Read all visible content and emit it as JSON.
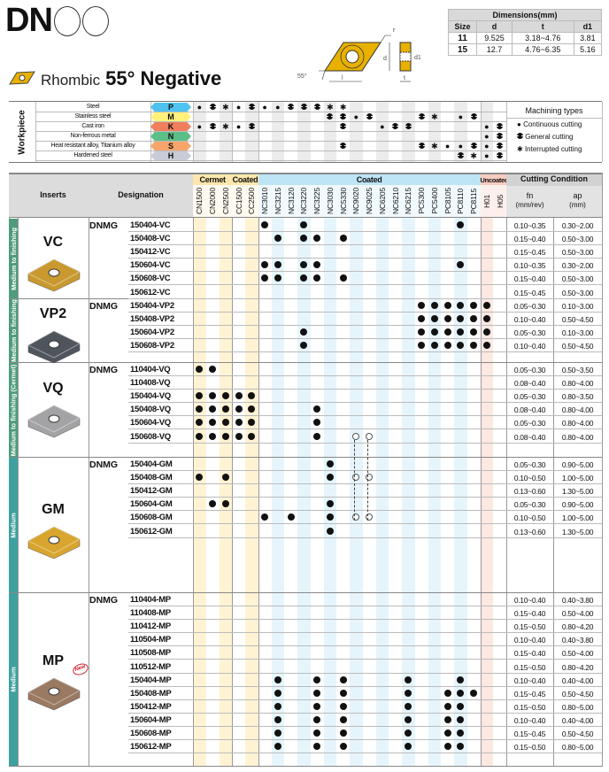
{
  "header": {
    "title": "DN",
    "subtitle_shape": "Rhombic",
    "subtitle_angle": "55° Negative"
  },
  "diagram": {
    "labels": {
      "r": "r",
      "d": "d",
      "d1": "d1",
      "l": "l",
      "t": "t",
      "angle": "55°"
    },
    "insert_color": "#e8b100"
  },
  "dimensions": {
    "title": "Dimensions(mm)",
    "columns": [
      "Size",
      "d",
      "t",
      "d1"
    ],
    "rows": [
      [
        "11",
        "9.525",
        "3.18~4.76",
        "3.81"
      ],
      [
        "15",
        "12.7",
        "4.76~6.35",
        "5.16"
      ]
    ]
  },
  "workpiece": {
    "label": "Workpiece",
    "rows": [
      {
        "name": "Steel",
        "code": "P",
        "color": "#4fc3f0",
        "symbols": "CGICGCCGGGII............"
      },
      {
        "name": "Stainless steel",
        "code": "M",
        "color": "#fff27a",
        "symbols": "..........GGCG...GI.CG.."
      },
      {
        "name": "Cast iron",
        "code": "K",
        "color": "#f07f5e",
        "symbols": "CGICG......G..CGG.....CG"
      },
      {
        "name": "Non-ferrous metal",
        "code": "N",
        "color": "#5cbf88",
        "symbols": "......................CG"
      },
      {
        "name": "Heat resistant alloy, Titanium alloy",
        "code": "S",
        "color": "#f7a56a",
        "symbols": "...........G.....GICCGCG"
      },
      {
        "name": "Hardened steel",
        "code": "H",
        "color": "#c9ccd8",
        "symbols": "....................GICG"
      }
    ]
  },
  "machining_types": {
    "title": "Machining types",
    "items": [
      "Continuous cutting",
      "General cutting",
      "Interrupted cutting"
    ]
  },
  "table": {
    "inserts_label": "Inserts",
    "designation_label": "Designation",
    "groups": [
      {
        "label": "Cermet",
        "color": "#fde7ad"
      },
      {
        "label": "Coated",
        "color": "#fde7ad"
      },
      {
        "label": "Coated",
        "color": "#bde5f6"
      },
      {
        "label": "Uncoated",
        "color": "#f8cbbf"
      }
    ],
    "grades": [
      "CN1500",
      "CN2000",
      "CN2500",
      "CC1500",
      "CC2500",
      "NC3010",
      "NC3215",
      "NC3120",
      "NC3220",
      "NC3225",
      "NC3030",
      "NC5330",
      "NC9020",
      "NC9025",
      "NC6205",
      "NC6210",
      "NC6215",
      "PC5300",
      "PC5400",
      "PC8105",
      "PC8110",
      "PC8115",
      "H01",
      "H05"
    ],
    "cutting_condition": "Cutting Condition",
    "fn_label": "fn",
    "fn_unit": "(mm/rev)",
    "ap_label": "ap",
    "ap_unit": "(mm)"
  },
  "sections": [
    {
      "name": "VC",
      "application": "Medium to finishing",
      "prefix": "DNMG",
      "rows": [
        {
          "code": "150404-VC",
          "dots": [
            5,
            8,
            20
          ],
          "fn": "0.10~0.35",
          "ap": "0.30~2.00"
        },
        {
          "code": "150408-VC",
          "dots": [
            6,
            8,
            9,
            11
          ],
          "fn": "0.15~0.40",
          "ap": "0.50~3.00"
        },
        {
          "code": "150412-VC",
          "dots": [],
          "fn": "0.15~0.45",
          "ap": "0.50~3.00"
        },
        {
          "code": "150604-VC",
          "dots": [
            5,
            6,
            8,
            9,
            20
          ],
          "fn": "0.10~0.35",
          "ap": "0.30~2.00"
        },
        {
          "code": "150608-VC",
          "dots": [
            5,
            6,
            8,
            9,
            11
          ],
          "fn": "0.15~0.40",
          "ap": "0.50~3.00"
        },
        {
          "code": "150612-VC",
          "dots": [],
          "fn": "0.15~0.45",
          "ap": "0.50~3.00"
        }
      ]
    },
    {
      "name": "VP2",
      "application": "Medium to finishing",
      "prefix": "DNMG",
      "rows": [
        {
          "code": "150404-VP2",
          "dots": [
            17,
            18,
            19,
            20,
            21,
            22
          ],
          "fn": "0.05~0.30",
          "ap": "0.10~3.00"
        },
        {
          "code": "150408-VP2",
          "dots": [
            17,
            18,
            19,
            20,
            21,
            22
          ],
          "fn": "0.10~0.40",
          "ap": "0.50~4.50"
        },
        {
          "code": "150604-VP2",
          "dots": [
            8,
            17,
            18,
            19,
            20,
            21,
            22
          ],
          "fn": "0.05~0.30",
          "ap": "0.10~3.00"
        },
        {
          "code": "150608-VP2",
          "dots": [
            8,
            17,
            18,
            19,
            20,
            21,
            22
          ],
          "fn": "0.10~0.40",
          "ap": "0.50~4.50"
        }
      ]
    },
    {
      "name": "VQ",
      "application": "Medium to finishing (Cermet)",
      "prefix": "DNMG",
      "rows": [
        {
          "code": "110404-VQ",
          "dots": [
            0,
            1
          ],
          "fn": "0.05~0.30",
          "ap": "0.50~3.50"
        },
        {
          "code": "110408-VQ",
          "dots": [],
          "fn": "0.08~0.40",
          "ap": "0.80~4.00"
        },
        {
          "code": "150404-VQ",
          "dots": [
            0,
            1,
            2,
            3,
            4
          ],
          "fn": "0.05~0.30",
          "ap": "0.80~3.50"
        },
        {
          "code": "150408-VQ",
          "dots": [
            0,
            1,
            2,
            3,
            4,
            9
          ],
          "fn": "0.08~0.40",
          "ap": "0.80~4.00"
        },
        {
          "code": "150604-VQ",
          "dots": [
            0,
            1,
            2,
            3,
            4,
            9
          ],
          "fn": "0.05~0.30",
          "ap": "0.80~4.00"
        },
        {
          "code": "150608-VQ",
          "dots": [
            0,
            1,
            2,
            3,
            4,
            9
          ],
          "hollow": [
            12,
            13
          ],
          "fn": "0.08~0.40",
          "ap": "0.80~4.00"
        }
      ]
    },
    {
      "name": "GM",
      "application": "Medium",
      "prefix": "DNMG",
      "rows": [
        {
          "code": "150404-GM",
          "dots": [
            10
          ],
          "fn": "0.05~0.30",
          "ap": "0.90~5.00"
        },
        {
          "code": "150408-GM",
          "dots": [
            0,
            2,
            10
          ],
          "hollow": [
            12,
            13
          ],
          "fn": "0.10~0.50",
          "ap": "1.00~5.00"
        },
        {
          "code": "150412-GM",
          "dots": [],
          "fn": "0.13~0.60",
          "ap": "1.30~5.00"
        },
        {
          "code": "150604-GM",
          "dots": [
            1,
            2,
            10
          ],
          "fn": "0.05~0.30",
          "ap": "0.90~5.00"
        },
        {
          "code": "150608-GM",
          "dots": [
            5,
            7,
            10
          ],
          "hollow": [
            12,
            13
          ],
          "fn": "0.10~0.50",
          "ap": "1.00~5.00"
        },
        {
          "code": "150612-GM",
          "dots": [
            10
          ],
          "fn": "0.13~0.60",
          "ap": "1.30~5.00"
        }
      ]
    },
    {
      "name": "MP",
      "application": "Medium",
      "prefix": "DNMG",
      "badge": "New",
      "rows": [
        {
          "code": "110404-MP",
          "dots": [],
          "fn": "0.10~0.40",
          "ap": "0.40~3.80"
        },
        {
          "code": "110408-MP",
          "dots": [],
          "fn": "0.15~0.40",
          "ap": "0.50~4.00"
        },
        {
          "code": "110412-MP",
          "dots": [],
          "fn": "0.15~0.50",
          "ap": "0.80~4.20"
        },
        {
          "code": "110504-MP",
          "dots": [],
          "fn": "0.10~0.40",
          "ap": "0.40~3.80"
        },
        {
          "code": "110508-MP",
          "dots": [],
          "fn": "0.15~0.40",
          "ap": "0.50~4.00"
        },
        {
          "code": "110512-MP",
          "dots": [],
          "fn": "0.15~0.50",
          "ap": "0.80~4.20"
        },
        {
          "code": "150404-MP",
          "dots": [
            6,
            9,
            11,
            16,
            20
          ],
          "fn": "0.10~0.40",
          "ap": "0.40~4.00"
        },
        {
          "code": "150408-MP",
          "dots": [
            6,
            9,
            11,
            16,
            19,
            20,
            21
          ],
          "fn": "0.15~0.45",
          "ap": "0.50~4.50"
        },
        {
          "code": "150412-MP",
          "dots": [
            6,
            9,
            11,
            16,
            19,
            20
          ],
          "fn": "0.15~0.50",
          "ap": "0.80~5.00"
        },
        {
          "code": "150604-MP",
          "dots": [
            6,
            9,
            11,
            16,
            19,
            20
          ],
          "fn": "0.10~0.40",
          "ap": "0.40~4.00"
        },
        {
          "code": "150608-MP",
          "dots": [
            6,
            9,
            11,
            16,
            19,
            20
          ],
          "fn": "0.15~0.45",
          "ap": "0.50~4.50"
        },
        {
          "code": "150612-MP",
          "dots": [
            6,
            9,
            11,
            16,
            19,
            20
          ],
          "fn": "0.15~0.50",
          "ap": "0.80~5.00"
        }
      ]
    }
  ],
  "colors": {
    "side_band_finishing": "#4f9c7c",
    "side_band_medium": "#3fa19f",
    "VC": "#c9992f",
    "VP2": "#50555d",
    "VQ": "#a3a3a5",
    "GM": "#d8a52e",
    "MP": "#9a7a62",
    "new_badge": "#d8202a"
  }
}
